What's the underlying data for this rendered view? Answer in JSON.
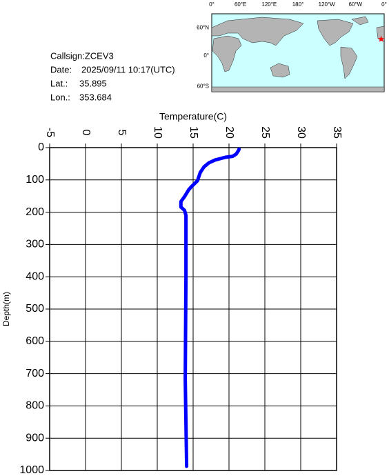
{
  "info": {
    "callsign": "Callsign:ZCEV3",
    "date_label": "Date:",
    "date": "2025/09/11 10:17(UTC)",
    "lat_label": "Lat.:",
    "lat": 35.895,
    "lon_label": "Lon.:",
    "lon": 353.684
  },
  "map": {
    "xlabels": [
      "0°",
      "60°E",
      "120°E",
      "180°",
      "120°W",
      "60°W",
      "0°"
    ],
    "ylabels": [
      "60°N",
      "0°",
      "60°S"
    ],
    "marker_color": "#ff0000"
  },
  "chart_data": {
    "type": "line",
    "x_label": "Temperature(C)",
    "y_label": "Depth(m)",
    "series": [
      {
        "name": "Temperature",
        "color": "#0000ff",
        "x": [
          21.4,
          21.3,
          21.0,
          20.5,
          19.5,
          18.1,
          17.2,
          16.5,
          16.0,
          15.6,
          14.8,
          14.4,
          13.8,
          13.3,
          13.3,
          13.8,
          14.0,
          14.0,
          13.9,
          14.1
        ],
        "values": [
          5,
          10,
          20,
          27,
          30,
          38,
          47,
          60,
          77,
          103,
          120,
          130,
          152,
          167,
          184,
          194,
          210,
          397,
          718,
          987
        ]
      }
    ],
    "xlim": [
      -5,
      35
    ],
    "xticks": [
      -5,
      0,
      5,
      10,
      15,
      20,
      25,
      30,
      35
    ],
    "ylim": [
      0,
      1000
    ],
    "yticks": [
      0,
      100,
      200,
      300,
      400,
      500,
      600,
      700,
      800,
      900,
      1000
    ],
    "y_inverted": true,
    "grid": true
  }
}
